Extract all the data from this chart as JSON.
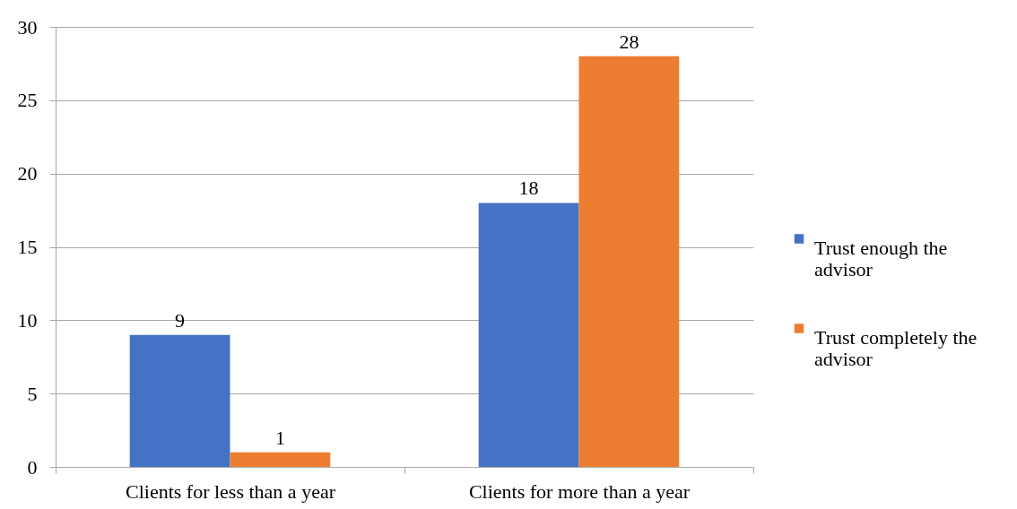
{
  "chart_data": {
    "type": "bar",
    "categories": [
      "Clients for less than a year",
      "Clients for more than a year"
    ],
    "series": [
      {
        "name": "Trust enough the advisor",
        "color": "#4472c4",
        "values": [
          9,
          18
        ]
      },
      {
        "name": "Trust completely the advisor",
        "color": "#ed7d31",
        "values": [
          1,
          28
        ]
      }
    ],
    "ylim": [
      0,
      30
    ],
    "yticks": [
      0,
      5,
      10,
      15,
      20,
      25,
      30
    ],
    "grid": "y",
    "legend": "right",
    "data_labels": true
  }
}
